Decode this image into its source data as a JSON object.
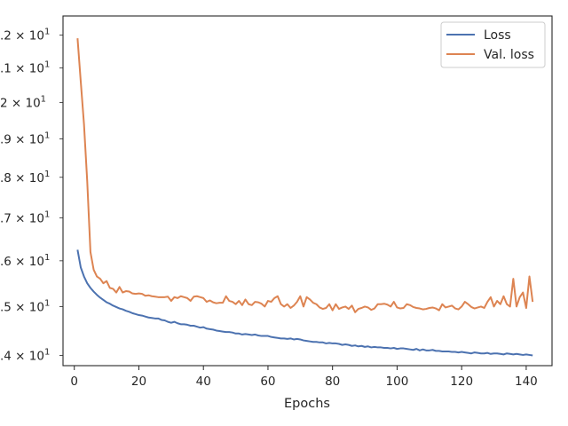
{
  "chart_data": {
    "type": "line",
    "title": "",
    "xlabel": "Epochs",
    "ylabel": "",
    "xlim": [
      -3.5,
      148
    ],
    "ylim": [
      13.8,
      22.6
    ],
    "y_scale": "log",
    "grid": false,
    "legend_position": "top-right",
    "x_ticks": [
      0,
      20,
      40,
      60,
      80,
      100,
      120,
      140
    ],
    "y_ticks": [
      {
        "value": 14,
        "mantissa": ".4",
        "base": "10",
        "exp": "1"
      },
      {
        "value": 15,
        "mantissa": ".5",
        "base": "10",
        "exp": "1"
      },
      {
        "value": 16,
        "mantissa": ".6",
        "base": "10",
        "exp": "1"
      },
      {
        "value": 17,
        "mantissa": ".7",
        "base": "10",
        "exp": "1"
      },
      {
        "value": 18,
        "mantissa": ".8",
        "base": "10",
        "exp": "1"
      },
      {
        "value": 19,
        "mantissa": ".9",
        "base": "10",
        "exp": "1"
      },
      {
        "value": 20,
        "mantissa": "2",
        "base": "10",
        "exp": "1"
      },
      {
        "value": 21,
        "mantissa": ".1",
        "base": "10",
        "exp": "1"
      },
      {
        "value": 22,
        "mantissa": ".2",
        "base": "10",
        "exp": "1"
      }
    ],
    "series": [
      {
        "name": "Loss",
        "color": "#4c72b0",
        "x": [
          1,
          2,
          3,
          4,
          5,
          6,
          7,
          8,
          9,
          10,
          11,
          12,
          13,
          14,
          15,
          16,
          17,
          18,
          19,
          20,
          21,
          22,
          23,
          24,
          25,
          26,
          27,
          28,
          29,
          30,
          31,
          32,
          33,
          34,
          35,
          36,
          37,
          38,
          39,
          40,
          41,
          42,
          43,
          44,
          45,
          46,
          47,
          48,
          49,
          50,
          51,
          52,
          53,
          54,
          55,
          56,
          57,
          58,
          59,
          60,
          61,
          62,
          63,
          64,
          65,
          66,
          67,
          68,
          69,
          70,
          71,
          72,
          73,
          74,
          75,
          76,
          77,
          78,
          79,
          80,
          81,
          82,
          83,
          84,
          85,
          86,
          87,
          88,
          89,
          90,
          91,
          92,
          93,
          94,
          95,
          96,
          97,
          98,
          99,
          100,
          101,
          102,
          103,
          104,
          105,
          106,
          107,
          108,
          109,
          110,
          111,
          112,
          113,
          114,
          115,
          116,
          117,
          118,
          119,
          120,
          121,
          122,
          123,
          124,
          125,
          126,
          127,
          128,
          129,
          130,
          131,
          132,
          133,
          134,
          135,
          136,
          137,
          138,
          139,
          140,
          141,
          142
        ],
        "values": [
          16.25,
          15.85,
          15.65,
          15.5,
          15.4,
          15.32,
          15.25,
          15.19,
          15.14,
          15.09,
          15.06,
          15.02,
          14.99,
          14.96,
          14.94,
          14.91,
          14.89,
          14.86,
          14.84,
          14.82,
          14.81,
          14.79,
          14.77,
          14.76,
          14.75,
          14.75,
          14.72,
          14.71,
          14.68,
          14.66,
          14.68,
          14.65,
          14.63,
          14.63,
          14.62,
          14.6,
          14.6,
          14.58,
          14.56,
          14.57,
          14.54,
          14.53,
          14.52,
          14.5,
          14.49,
          14.48,
          14.47,
          14.47,
          14.46,
          14.44,
          14.44,
          14.42,
          14.43,
          14.42,
          14.41,
          14.42,
          14.4,
          14.39,
          14.39,
          14.39,
          14.37,
          14.36,
          14.35,
          14.34,
          14.34,
          14.33,
          14.34,
          14.32,
          14.33,
          14.32,
          14.3,
          14.29,
          14.28,
          14.27,
          14.27,
          14.26,
          14.26,
          14.24,
          14.25,
          14.24,
          14.24,
          14.23,
          14.21,
          14.22,
          14.21,
          14.19,
          14.2,
          14.18,
          14.19,
          14.17,
          14.18,
          14.16,
          14.17,
          14.16,
          14.16,
          14.15,
          14.15,
          14.14,
          14.15,
          14.13,
          14.14,
          14.14,
          14.13,
          14.12,
          14.11,
          14.13,
          14.1,
          14.12,
          14.1,
          14.1,
          14.11,
          14.09,
          14.09,
          14.08,
          14.08,
          14.08,
          14.07,
          14.07,
          14.06,
          14.07,
          14.06,
          14.05,
          14.04,
          14.06,
          14.05,
          14.04,
          14.04,
          14.05,
          14.03,
          14.04,
          14.04,
          14.03,
          14.02,
          14.04,
          14.03,
          14.02,
          14.03,
          14.02,
          14.01,
          14.02,
          14.01,
          14.0
        ]
      },
      {
        "name": "Val. loss",
        "color": "#dd8452",
        "x": [
          1,
          2,
          3,
          4,
          5,
          6,
          7,
          8,
          9,
          10,
          11,
          12,
          13,
          14,
          15,
          16,
          17,
          18,
          19,
          20,
          21,
          22,
          23,
          24,
          25,
          26,
          27,
          28,
          29,
          30,
          31,
          32,
          33,
          34,
          35,
          36,
          37,
          38,
          39,
          40,
          41,
          42,
          43,
          44,
          45,
          46,
          47,
          48,
          49,
          50,
          51,
          52,
          53,
          54,
          55,
          56,
          57,
          58,
          59,
          60,
          61,
          62,
          63,
          64,
          65,
          66,
          67,
          68,
          69,
          70,
          71,
          72,
          73,
          74,
          75,
          76,
          77,
          78,
          79,
          80,
          81,
          82,
          83,
          84,
          85,
          86,
          87,
          88,
          89,
          90,
          91,
          92,
          93,
          94,
          95,
          96,
          97,
          98,
          99,
          100,
          101,
          102,
          103,
          104,
          105,
          106,
          107,
          108,
          109,
          110,
          111,
          112,
          113,
          114,
          115,
          116,
          117,
          118,
          119,
          120,
          121,
          122,
          123,
          124,
          125,
          126,
          127,
          128,
          129,
          130,
          131,
          132,
          133,
          134,
          135,
          136,
          137,
          138,
          139,
          140,
          141,
          142
        ],
        "values": [
          21.9,
          20.6,
          19.4,
          17.9,
          16.2,
          15.8,
          15.65,
          15.6,
          15.5,
          15.55,
          15.4,
          15.38,
          15.3,
          15.42,
          15.3,
          15.33,
          15.32,
          15.28,
          15.27,
          15.28,
          15.27,
          15.23,
          15.24,
          15.22,
          15.21,
          15.2,
          15.2,
          15.2,
          15.21,
          15.12,
          15.2,
          15.18,
          15.22,
          15.2,
          15.18,
          15.12,
          15.21,
          15.22,
          15.2,
          15.18,
          15.1,
          15.13,
          15.09,
          15.07,
          15.08,
          15.08,
          15.22,
          15.12,
          15.1,
          15.05,
          15.12,
          15.03,
          15.15,
          15.05,
          15.03,
          15.1,
          15.09,
          15.06,
          15.0,
          15.12,
          15.1,
          15.18,
          15.22,
          15.05,
          15.0,
          15.05,
          14.97,
          15.02,
          15.1,
          15.22,
          15.0,
          15.2,
          15.15,
          15.08,
          15.05,
          14.98,
          14.95,
          14.97,
          15.05,
          14.92,
          15.05,
          14.95,
          14.98,
          15.0,
          14.95,
          15.02,
          14.88,
          14.95,
          14.97,
          15.0,
          14.98,
          14.93,
          14.96,
          15.05,
          15.05,
          15.06,
          15.04,
          15.0,
          15.1,
          14.98,
          14.96,
          14.97,
          15.05,
          15.03,
          14.99,
          14.97,
          14.96,
          14.94,
          14.95,
          14.97,
          14.98,
          14.96,
          14.92,
          15.05,
          14.98,
          15.0,
          15.02,
          14.96,
          14.94,
          15.0,
          15.1,
          15.05,
          14.99,
          14.96,
          14.98,
          15.0,
          14.97,
          15.1,
          15.2,
          15.0,
          15.12,
          15.05,
          15.22,
          15.05,
          15.0,
          15.6,
          15.0,
          15.2,
          15.3,
          14.97,
          15.65,
          15.1
        ]
      }
    ]
  }
}
